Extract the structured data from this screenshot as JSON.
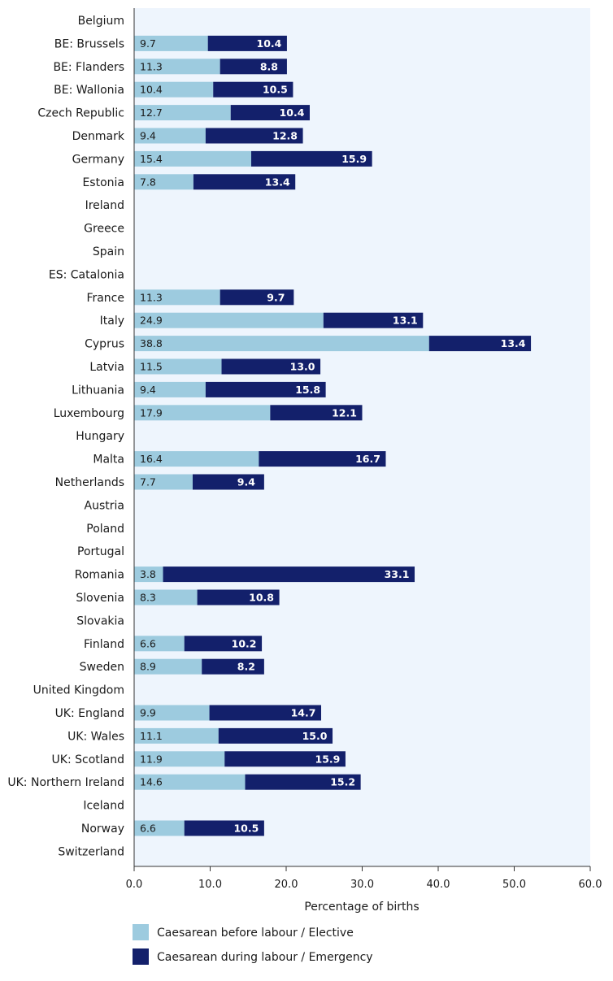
{
  "colors": {
    "plot_background": "#eef5fd",
    "elective": "#9dcbdf",
    "emergency": "#13206b",
    "axis": "#333333"
  },
  "chart_data": {
    "type": "bar",
    "orientation": "horizontal",
    "stacked": true,
    "xlabel": "Percentage of births",
    "ylabel": "",
    "title": "",
    "xlim": [
      0,
      60
    ],
    "xticks": [
      "0.0",
      "10.0",
      "20.0",
      "30.0",
      "40.0",
      "50.0",
      "60.0"
    ],
    "grid": false,
    "legend_position": "bottom-left",
    "categories": [
      "Belgium",
      "BE: Brussels",
      "BE: Flanders",
      "BE: Wallonia",
      "Czech Republic",
      "Denmark",
      "Germany",
      "Estonia",
      "Ireland",
      "Greece",
      "Spain",
      "ES: Catalonia",
      "France",
      "Italy",
      "Cyprus",
      "Latvia",
      "Lithuania",
      "Luxembourg",
      "Hungary",
      "Malta",
      "Netherlands",
      "Austria",
      "Poland",
      "Portugal",
      "Romania",
      "Slovenia",
      "Slovakia",
      "Finland",
      "Sweden",
      "United Kingdom",
      "UK: England",
      "UK: Wales",
      "UK: Scotland",
      "UK: Northern Ireland",
      "Iceland",
      "Norway",
      "Switzerland"
    ],
    "series": [
      {
        "name": "Caesarean before labour / Elective",
        "color": "#9dcbdf",
        "values": [
          null,
          9.7,
          11.3,
          10.4,
          12.7,
          9.4,
          15.4,
          7.8,
          null,
          null,
          null,
          null,
          11.3,
          24.9,
          38.8,
          11.5,
          9.4,
          17.9,
          null,
          16.4,
          7.7,
          null,
          null,
          null,
          3.8,
          8.3,
          null,
          6.6,
          8.9,
          null,
          9.9,
          11.1,
          11.9,
          14.6,
          null,
          6.6,
          null
        ]
      },
      {
        "name": "Caesarean during labour / Emergency",
        "color": "#13206b",
        "values": [
          null,
          10.4,
          8.8,
          10.5,
          10.4,
          12.8,
          15.9,
          13.4,
          null,
          null,
          null,
          null,
          9.7,
          13.1,
          13.4,
          13.0,
          15.8,
          12.1,
          null,
          16.7,
          9.4,
          null,
          null,
          null,
          33.1,
          10.8,
          null,
          10.2,
          8.2,
          null,
          14.7,
          15.0,
          15.9,
          15.2,
          null,
          10.5,
          null
        ]
      }
    ]
  }
}
